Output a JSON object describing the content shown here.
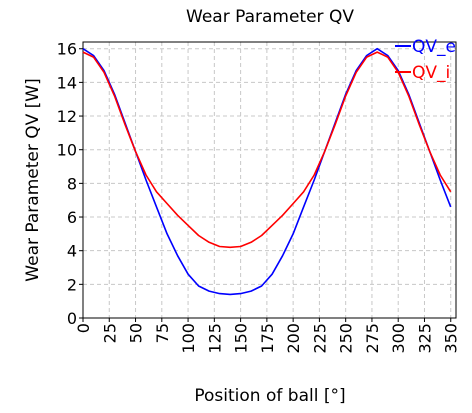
{
  "chart_data": {
    "type": "line",
    "title": "Wear Parameter QV",
    "xlabel": "Position of ball [°]",
    "ylabel": "Wear Parameter QV [W]",
    "xlim": [
      0,
      355
    ],
    "ylim": [
      0,
      16.4
    ],
    "xticks": [
      0,
      25,
      50,
      75,
      100,
      125,
      150,
      175,
      200,
      225,
      250,
      275,
      300,
      325,
      350
    ],
    "yticks": [
      0,
      2,
      4,
      6,
      8,
      10,
      12,
      14,
      16
    ],
    "grid": true,
    "legend_position": "top-right",
    "series": [
      {
        "name": "QV_e",
        "color": "#0000ff",
        "x": [
          0,
          10,
          20,
          30,
          40,
          50,
          60,
          70,
          80,
          90,
          100,
          110,
          120,
          130,
          140,
          150,
          160,
          170,
          180,
          190,
          200,
          210,
          220,
          230,
          240,
          250,
          260,
          270,
          280,
          290,
          300,
          310,
          320,
          330,
          340,
          350
        ],
        "y": [
          16.0,
          15.6,
          14.7,
          13.3,
          11.6,
          9.9,
          8.2,
          6.6,
          5.0,
          3.7,
          2.6,
          1.9,
          1.6,
          1.45,
          1.4,
          1.45,
          1.6,
          1.9,
          2.6,
          3.7,
          5.0,
          6.6,
          8.2,
          9.9,
          11.6,
          13.3,
          14.7,
          15.6,
          16.0,
          15.6,
          14.7,
          13.3,
          11.6,
          9.9,
          8.2,
          6.6
        ]
      },
      {
        "name": "QV_i",
        "color": "#ff0000",
        "x": [
          0,
          10,
          20,
          30,
          40,
          50,
          60,
          70,
          80,
          90,
          100,
          110,
          120,
          130,
          140,
          150,
          160,
          170,
          180,
          190,
          200,
          210,
          220,
          230,
          240,
          250,
          260,
          270,
          280,
          290,
          300,
          310,
          320,
          330,
          340,
          350
        ],
        "y": [
          15.8,
          15.5,
          14.6,
          13.2,
          11.5,
          9.9,
          8.5,
          7.5,
          6.8,
          6.1,
          5.5,
          4.9,
          4.5,
          4.25,
          4.2,
          4.25,
          4.5,
          4.9,
          5.5,
          6.1,
          6.8,
          7.5,
          8.5,
          9.9,
          11.5,
          13.2,
          14.6,
          15.5,
          15.8,
          15.5,
          14.6,
          13.2,
          11.5,
          9.9,
          8.5,
          7.5
        ]
      }
    ]
  }
}
